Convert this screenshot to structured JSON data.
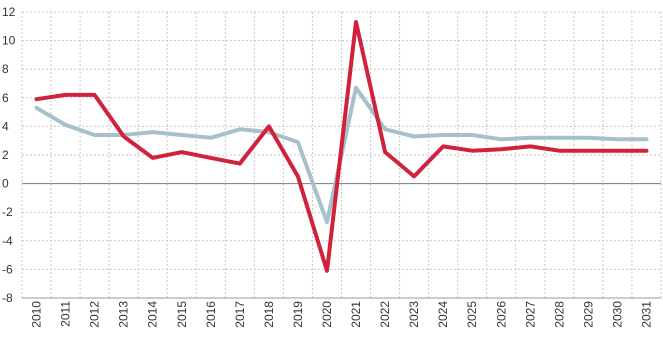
{
  "chart_data": {
    "type": "line",
    "title": "",
    "xlabel": "",
    "ylabel": "",
    "x": [
      "2010",
      "2011",
      "2012",
      "2013",
      "2014",
      "2015",
      "2016",
      "2017",
      "2018",
      "2019",
      "2020",
      "2021",
      "2022",
      "2023",
      "2024",
      "2025",
      "2026",
      "2027",
      "2028",
      "2029",
      "2030",
      "2031"
    ],
    "ylim": [
      -8,
      12
    ],
    "yticks": [
      -8,
      -6,
      -4,
      -2,
      0,
      2,
      4,
      6,
      8,
      10,
      12
    ],
    "ytick_labels": [
      "-8",
      "-6",
      "-4",
      "-2",
      "0",
      "2",
      "4",
      "6",
      "8",
      "10",
      "12"
    ],
    "grid": true,
    "series": [
      {
        "color": "#d0223c",
        "values": [
          5.9,
          6.2,
          6.2,
          3.3,
          1.8,
          2.2,
          1.8,
          1.4,
          4.0,
          0.5,
          -6.1,
          11.3,
          2.2,
          0.5,
          2.6,
          2.3,
          2.4,
          2.6,
          2.3,
          2.3,
          2.3,
          2.3
        ]
      },
      {
        "color": "#a6c0cc",
        "values": [
          5.3,
          4.1,
          3.4,
          3.4,
          3.6,
          3.4,
          3.2,
          3.8,
          3.6,
          2.9,
          -2.7,
          6.7,
          3.8,
          3.3,
          3.4,
          3.4,
          3.1,
          3.2,
          3.2,
          3.2,
          3.1,
          3.1
        ]
      }
    ]
  }
}
